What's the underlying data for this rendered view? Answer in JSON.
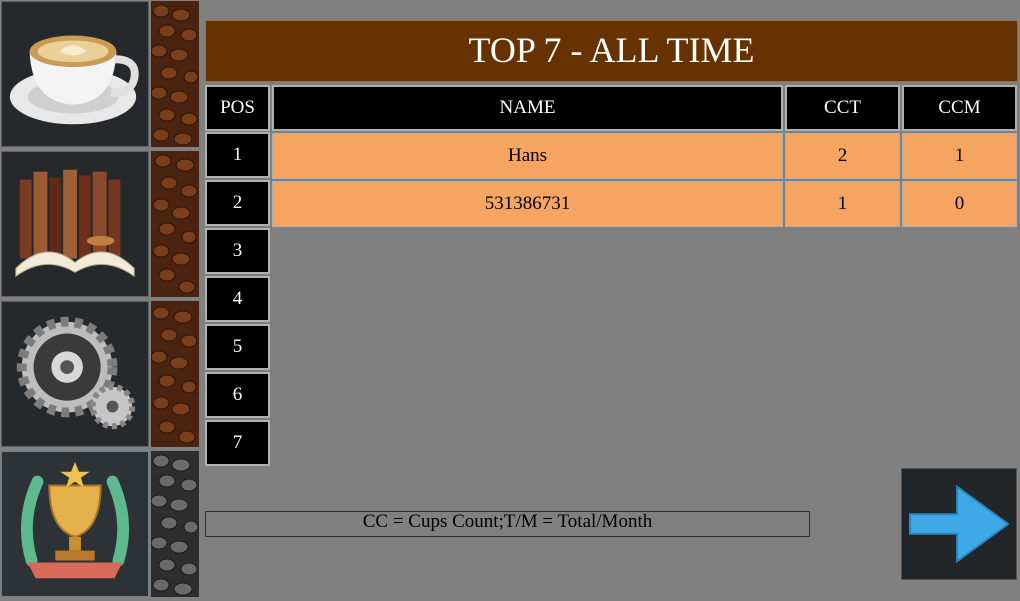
{
  "sidebar": {
    "items": [
      {
        "name": "coffee-cup-icon"
      },
      {
        "name": "library-icon"
      },
      {
        "name": "gears-icon"
      },
      {
        "name": "trophy-icon",
        "active": true
      }
    ]
  },
  "board": {
    "title": "TOP 7 - ALL TIME",
    "headers": {
      "pos": "POS",
      "name": "NAME",
      "cct": "CCT",
      "ccm": "CCM"
    },
    "positions": [
      "1",
      "2",
      "3",
      "4",
      "5",
      "6",
      "7"
    ],
    "rows": [
      {
        "name": "Hans",
        "cct": "2",
        "ccm": "1"
      },
      {
        "name": "531386731",
        "cct": "1",
        "ccm": "0"
      }
    ]
  },
  "legend": "CC = Cups Count;T/M = Total/Month",
  "colors": {
    "title_bg": "#663300",
    "row_bg": "#f5a462",
    "page_bg": "#808080",
    "arrow": "#3fa9e8"
  },
  "next_icon": "arrow-right-icon"
}
